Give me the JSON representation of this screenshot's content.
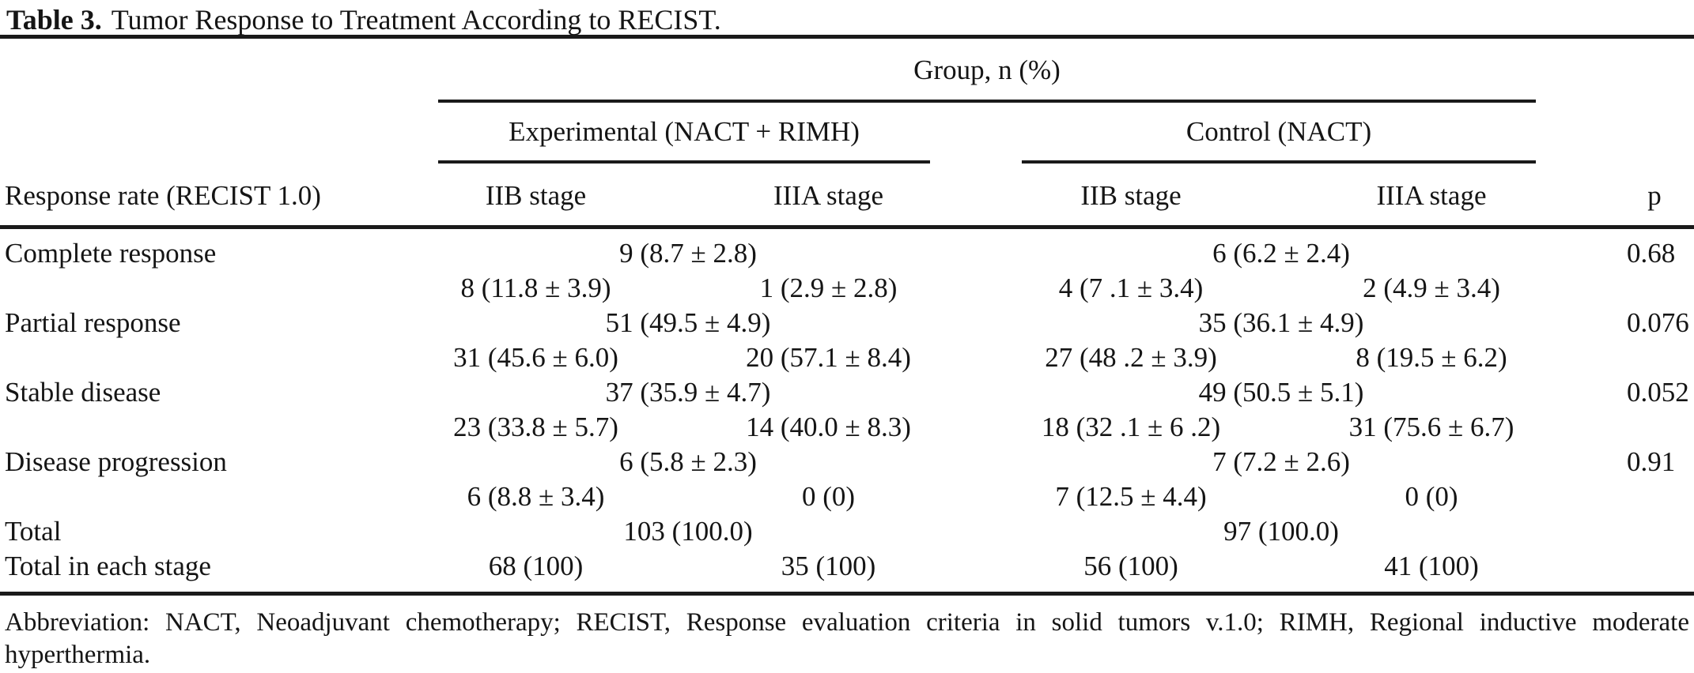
{
  "colors": {
    "ink": "#151515",
    "rule": "#1a1a1a",
    "background": "#ffffff"
  },
  "caption": {
    "label": "Table 3.",
    "text": "Tumor Response to Treatment According to RECIST."
  },
  "header": {
    "group": "Group, n (%)",
    "experimental": "Experimental (NACT + RIMH)",
    "control": "Control (NACT)",
    "response_rate": "Response rate (RECIST 1.0)",
    "stages": [
      "IIB stage",
      "IIIA stage",
      "IIB stage",
      "IIIA stage"
    ],
    "p": "p"
  },
  "rows": [
    {
      "type": "category",
      "label": "Complete response",
      "experimental": "9 (8.7 ± 2.8)",
      "control": "6 (6.2 ± 2.4)",
      "p": "0.68"
    },
    {
      "type": "stages",
      "exp_iib": "8 (11.8 ± 3.9)",
      "exp_iiia": "1 (2.9 ± 2.8)",
      "ctrl_iib": "4 (7 .1 ± 3.4)",
      "ctrl_iiia": "2 (4.9 ± 3.4)"
    },
    {
      "type": "category",
      "label": "Partial response",
      "experimental": "51 (49.5 ± 4.9)",
      "control": "35 (36.1 ± 4.9)",
      "p": "0.076"
    },
    {
      "type": "stages",
      "exp_iib": "31 (45.6 ± 6.0)",
      "exp_iiia": "20 (57.1 ± 8.4)",
      "ctrl_iib": "27 (48 .2 ± 3.9)",
      "ctrl_iiia": "8 (19.5 ± 6.2)"
    },
    {
      "type": "category",
      "label": "Stable disease",
      "experimental": "37 (35.9 ± 4.7)",
      "control": "49 (50.5 ± 5.1)",
      "p": "0.052"
    },
    {
      "type": "stages",
      "exp_iib": "23 (33.8 ± 5.7)",
      "exp_iiia": "14 (40.0 ± 8.3)",
      "ctrl_iib": "18 (32 .1 ± 6 .2)",
      "ctrl_iiia": "31 (75.6 ± 6.7)"
    },
    {
      "type": "category",
      "label": "Disease progression",
      "experimental": "6 (5.8 ± 2.3)",
      "control": "7 (7.2 ± 2.6)",
      "p": "0.91"
    },
    {
      "type": "stages",
      "exp_iib": "6 (8.8 ± 3.4)",
      "exp_iiia": "0 (0)",
      "ctrl_iib": "7 (12.5 ± 4.4)",
      "ctrl_iiia": "0 (0)"
    },
    {
      "type": "total",
      "label": "Total",
      "experimental": "103 (100.0)",
      "control": "97 (100.0)"
    },
    {
      "type": "stages_total",
      "label": "Total in each stage",
      "exp_iib": "68 (100)",
      "exp_iiia": "35 (100)",
      "ctrl_iib": "56 (100)",
      "ctrl_iiia": "41 (100)"
    }
  ],
  "footnote": {
    "line1": "Abbreviation: NACT, Neoadjuvant chemotherapy; RECIST, Response evaluation criteria in solid tumors v.1.0; RIMH, Regional inductive moderate",
    "line2": "hyperthermia."
  }
}
